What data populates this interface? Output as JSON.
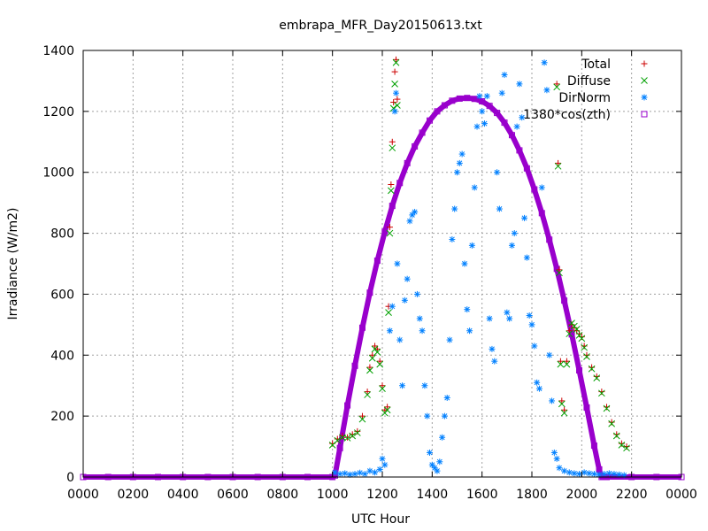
{
  "chart_data": {
    "type": "scatter",
    "title": "embrapa_MFR_Day20150613.txt",
    "xlabel": "UTC Hour",
    "ylabel": "Irradiance (W/m2)",
    "xlim": [
      0,
      24
    ],
    "ylim": [
      0,
      1400
    ],
    "grid": true,
    "legend_position": "top-right",
    "x_ticks": [
      {
        "value": 0,
        "label": "0000"
      },
      {
        "value": 2,
        "label": "0200"
      },
      {
        "value": 4,
        "label": "0400"
      },
      {
        "value": 6,
        "label": "0600"
      },
      {
        "value": 8,
        "label": "0800"
      },
      {
        "value": 10,
        "label": "1000"
      },
      {
        "value": 12,
        "label": "1200"
      },
      {
        "value": 14,
        "label": "1400"
      },
      {
        "value": 16,
        "label": "1600"
      },
      {
        "value": 18,
        "label": "1800"
      },
      {
        "value": 20,
        "label": "2000"
      },
      {
        "value": 22,
        "label": "2200"
      },
      {
        "value": 24,
        "label": "0000"
      }
    ],
    "y_ticks": [
      0,
      200,
      400,
      600,
      800,
      1000,
      1200,
      1400
    ],
    "series": [
      {
        "name": "Total",
        "marker": "plus",
        "color": "#cc0000",
        "points": [
          [
            10.0,
            110
          ],
          [
            10.2,
            125
          ],
          [
            10.4,
            135
          ],
          [
            10.6,
            130
          ],
          [
            10.8,
            140
          ],
          [
            11.0,
            150
          ],
          [
            11.2,
            200
          ],
          [
            11.4,
            280
          ],
          [
            11.5,
            360
          ],
          [
            11.6,
            400
          ],
          [
            11.7,
            430
          ],
          [
            11.8,
            420
          ],
          [
            11.9,
            380
          ],
          [
            12.0,
            300
          ],
          [
            12.1,
            220
          ],
          [
            12.2,
            230
          ],
          [
            12.25,
            560
          ],
          [
            12.3,
            820
          ],
          [
            12.35,
            960
          ],
          [
            12.4,
            1100
          ],
          [
            12.45,
            1230
          ],
          [
            12.5,
            1330
          ],
          [
            12.55,
            1370
          ],
          [
            12.6,
            1240
          ],
          [
            19.0,
            1290
          ],
          [
            19.05,
            1030
          ],
          [
            19.1,
            680
          ],
          [
            19.15,
            380
          ],
          [
            19.2,
            250
          ],
          [
            19.3,
            220
          ],
          [
            19.4,
            380
          ],
          [
            19.5,
            480
          ],
          [
            19.6,
            500
          ],
          [
            19.7,
            490
          ],
          [
            19.8,
            480
          ],
          [
            19.9,
            470
          ],
          [
            20.0,
            460
          ],
          [
            20.1,
            430
          ],
          [
            20.2,
            400
          ],
          [
            20.4,
            360
          ],
          [
            20.6,
            330
          ],
          [
            20.8,
            280
          ],
          [
            21.0,
            230
          ],
          [
            21.2,
            180
          ],
          [
            21.4,
            140
          ],
          [
            21.6,
            110
          ],
          [
            21.8,
            100
          ]
        ]
      },
      {
        "name": "Diffuse",
        "marker": "cross",
        "color": "#00a000",
        "points": [
          [
            10.0,
            105
          ],
          [
            10.2,
            120
          ],
          [
            10.4,
            130
          ],
          [
            10.6,
            128
          ],
          [
            10.8,
            135
          ],
          [
            11.0,
            145
          ],
          [
            11.2,
            190
          ],
          [
            11.4,
            270
          ],
          [
            11.5,
            350
          ],
          [
            11.6,
            390
          ],
          [
            11.7,
            420
          ],
          [
            11.8,
            410
          ],
          [
            11.9,
            370
          ],
          [
            12.0,
            290
          ],
          [
            12.1,
            210
          ],
          [
            12.2,
            220
          ],
          [
            12.25,
            540
          ],
          [
            12.3,
            800
          ],
          [
            12.35,
            940
          ],
          [
            12.4,
            1080
          ],
          [
            12.45,
            1210
          ],
          [
            12.5,
            1290
          ],
          [
            12.55,
            1360
          ],
          [
            12.6,
            1220
          ],
          [
            19.0,
            1280
          ],
          [
            19.05,
            1020
          ],
          [
            19.1,
            670
          ],
          [
            19.15,
            370
          ],
          [
            19.2,
            240
          ],
          [
            19.3,
            210
          ],
          [
            19.4,
            370
          ],
          [
            19.5,
            470
          ],
          [
            19.6,
            505
          ],
          [
            19.7,
            495
          ],
          [
            19.8,
            485
          ],
          [
            19.9,
            465
          ],
          [
            20.0,
            455
          ],
          [
            20.1,
            425
          ],
          [
            20.2,
            395
          ],
          [
            20.4,
            355
          ],
          [
            20.6,
            325
          ],
          [
            20.8,
            275
          ],
          [
            21.0,
            225
          ],
          [
            21.2,
            175
          ],
          [
            21.4,
            135
          ],
          [
            21.6,
            105
          ],
          [
            21.8,
            95
          ]
        ]
      },
      {
        "name": "DirNorm",
        "marker": "star",
        "color": "#0080ff",
        "points": [
          [
            10.1,
            15
          ],
          [
            10.3,
            10
          ],
          [
            10.5,
            12
          ],
          [
            10.7,
            8
          ],
          [
            10.9,
            10
          ],
          [
            11.1,
            14
          ],
          [
            11.3,
            10
          ],
          [
            11.5,
            20
          ],
          [
            11.7,
            15
          ],
          [
            11.9,
            25
          ],
          [
            12.0,
            60
          ],
          [
            12.1,
            40
          ],
          [
            12.3,
            480
          ],
          [
            12.4,
            560
          ],
          [
            12.5,
            1200
          ],
          [
            12.55,
            1260
          ],
          [
            12.6,
            700
          ],
          [
            12.7,
            450
          ],
          [
            12.8,
            300
          ],
          [
            12.9,
            580
          ],
          [
            13.0,
            650
          ],
          [
            13.1,
            840
          ],
          [
            13.2,
            860
          ],
          [
            13.3,
            870
          ],
          [
            13.4,
            600
          ],
          [
            13.5,
            520
          ],
          [
            13.6,
            480
          ],
          [
            13.7,
            300
          ],
          [
            13.8,
            200
          ],
          [
            13.9,
            80
          ],
          [
            14.0,
            40
          ],
          [
            14.1,
            30
          ],
          [
            14.2,
            20
          ],
          [
            14.3,
            50
          ],
          [
            14.4,
            130
          ],
          [
            14.5,
            200
          ],
          [
            14.6,
            260
          ],
          [
            14.7,
            450
          ],
          [
            14.8,
            780
          ],
          [
            14.9,
            880
          ],
          [
            15.0,
            1000
          ],
          [
            15.1,
            1030
          ],
          [
            15.2,
            1060
          ],
          [
            15.3,
            700
          ],
          [
            15.4,
            550
          ],
          [
            15.5,
            480
          ],
          [
            15.6,
            760
          ],
          [
            15.7,
            950
          ],
          [
            15.8,
            1150
          ],
          [
            15.9,
            1250
          ],
          [
            16.0,
            1200
          ],
          [
            16.1,
            1160
          ],
          [
            16.2,
            1250
          ],
          [
            16.3,
            520
          ],
          [
            16.4,
            420
          ],
          [
            16.5,
            380
          ],
          [
            16.6,
            1000
          ],
          [
            16.7,
            880
          ],
          [
            16.8,
            1260
          ],
          [
            16.9,
            1320
          ],
          [
            17.0,
            540
          ],
          [
            17.1,
            520
          ],
          [
            17.2,
            760
          ],
          [
            17.3,
            800
          ],
          [
            17.4,
            1150
          ],
          [
            17.5,
            1290
          ],
          [
            17.6,
            1180
          ],
          [
            17.7,
            850
          ],
          [
            17.8,
            720
          ],
          [
            17.9,
            530
          ],
          [
            18.0,
            500
          ],
          [
            18.1,
            430
          ],
          [
            18.2,
            310
          ],
          [
            18.3,
            290
          ],
          [
            18.4,
            950
          ],
          [
            18.5,
            1360
          ],
          [
            18.6,
            1270
          ],
          [
            18.7,
            400
          ],
          [
            18.8,
            250
          ],
          [
            18.9,
            80
          ],
          [
            19.0,
            60
          ],
          [
            19.1,
            30
          ],
          [
            19.3,
            20
          ],
          [
            19.5,
            15
          ],
          [
            19.7,
            12
          ],
          [
            19.9,
            10
          ],
          [
            20.1,
            15
          ],
          [
            20.3,
            12
          ],
          [
            20.5,
            10
          ],
          [
            20.7,
            8
          ],
          [
            20.9,
            10
          ],
          [
            21.1,
            12
          ],
          [
            21.3,
            10
          ],
          [
            21.5,
            8
          ],
          [
            21.7,
            6
          ]
        ]
      },
      {
        "name": "1380*cos(zth)",
        "marker": "square",
        "color": "#9900cc",
        "points": [
          [
            0,
            0
          ],
          [
            1,
            0
          ],
          [
            2,
            0
          ],
          [
            3,
            0
          ],
          [
            4,
            0
          ],
          [
            5,
            0
          ],
          [
            6,
            0
          ],
          [
            7,
            0
          ],
          [
            8,
            0
          ],
          [
            9,
            0
          ],
          [
            10,
            0
          ],
          [
            10.1,
            5
          ],
          [
            10.3,
            95
          ],
          [
            10.6,
            235
          ],
          [
            10.9,
            365
          ],
          [
            11.2,
            490
          ],
          [
            11.5,
            605
          ],
          [
            11.8,
            710
          ],
          [
            12.1,
            805
          ],
          [
            12.4,
            890
          ],
          [
            12.7,
            965
          ],
          [
            13.0,
            1030
          ],
          [
            13.3,
            1085
          ],
          [
            13.6,
            1130
          ],
          [
            13.9,
            1170
          ],
          [
            14.2,
            1200
          ],
          [
            14.5,
            1220
          ],
          [
            14.8,
            1235
          ],
          [
            15.1,
            1242
          ],
          [
            15.4,
            1244
          ],
          [
            15.7,
            1241
          ],
          [
            16.0,
            1233
          ],
          [
            16.3,
            1218
          ],
          [
            16.6,
            1195
          ],
          [
            16.9,
            1163
          ],
          [
            17.2,
            1122
          ],
          [
            17.5,
            1072
          ],
          [
            17.8,
            1013
          ],
          [
            18.1,
            944
          ],
          [
            18.4,
            866
          ],
          [
            18.7,
            779
          ],
          [
            19.0,
            683
          ],
          [
            19.3,
            579
          ],
          [
            19.6,
            468
          ],
          [
            19.9,
            350
          ],
          [
            20.2,
            228
          ],
          [
            20.5,
            103
          ],
          [
            20.7,
            25
          ],
          [
            20.8,
            0
          ],
          [
            21,
            0
          ],
          [
            22,
            0
          ],
          [
            23,
            0
          ],
          [
            24,
            0
          ]
        ]
      }
    ]
  }
}
